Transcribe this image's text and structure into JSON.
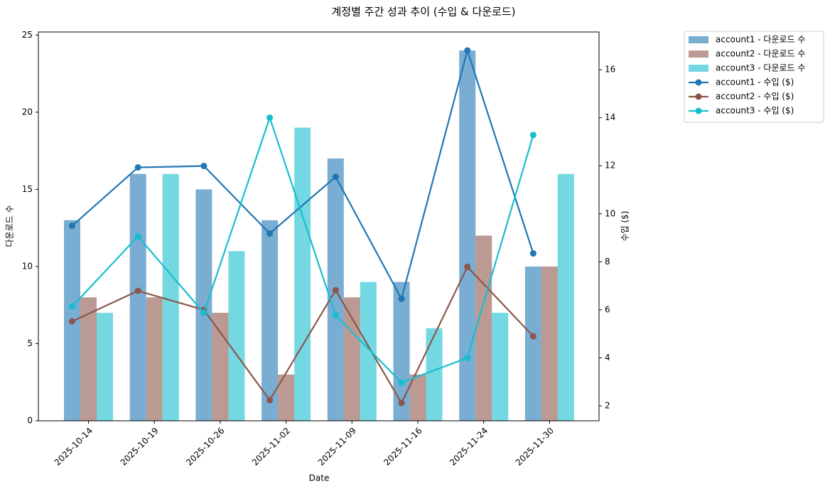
{
  "chart_data": {
    "type": "bar",
    "title": "계정별 주간 성과 추이 (수입 & 다운로드)",
    "x_label": "Date",
    "y_label": "다운로드 수",
    "y2_label": "수입 ($)",
    "categories": [
      "2025-10-14",
      "2025-10-19",
      "2025-10-26",
      "2025-11-02",
      "2025-11-09",
      "2025-11-16",
      "2025-11-24",
      "2025-11-30"
    ],
    "series": [
      {
        "name": "account1 - 다운로드 수",
        "type": "bar",
        "color": "#1f77b4",
        "values": [
          13,
          16,
          15,
          13,
          17,
          9,
          24,
          10
        ]
      },
      {
        "name": "account2 - 다운로드 수",
        "type": "bar",
        "color": "#8c564b",
        "values": [
          8,
          8,
          7,
          3,
          8,
          3,
          12,
          10
        ]
      },
      {
        "name": "account3 - 다운로드 수",
        "type": "bar",
        "color": "#17becf",
        "values": [
          7,
          16,
          11,
          19,
          9,
          6,
          7,
          16
        ]
      },
      {
        "name": "account1 - 수입 ($)",
        "type": "line",
        "axis": "y2",
        "color": "#1f77b4",
        "values": [
          9.5,
          11.93,
          11.99,
          9.18,
          11.54,
          6.46,
          16.8,
          8.35
        ]
      },
      {
        "name": "account2 - 수입 ($)",
        "type": "line",
        "axis": "y2",
        "color": "#8c564b",
        "values": [
          5.52,
          6.79,
          6.0,
          2.24,
          6.82,
          2.12,
          7.79,
          4.9
        ]
      },
      {
        "name": "account3 - 수입 ($)",
        "type": "line",
        "axis": "y2",
        "color": "#17becf",
        "values": [
          6.14,
          9.06,
          5.87,
          14.0,
          5.78,
          2.97,
          4.0,
          13.28
        ]
      }
    ],
    "ylim": [
      0,
      25.2
    ],
    "yticks": [
      0,
      5,
      10,
      15,
      20,
      25
    ],
    "y2lim": [
      1.38,
      17.57
    ],
    "y2ticks": [
      2,
      4,
      6,
      8,
      10,
      12,
      14,
      16
    ],
    "legend": "outside right",
    "grid": false
  }
}
